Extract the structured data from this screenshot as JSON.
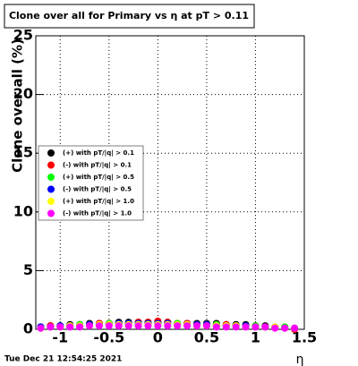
{
  "chart_data": {
    "type": "scatter",
    "title": "Clone  over all for Primary vs  η at pT > 0.11",
    "y_label": "Clone  over all (%)",
    "x_label": "η",
    "footer": "Tue Dec 21 12:54:25 2021",
    "xlim": [
      -1.25,
      1.5
    ],
    "ylim": [
      0,
      25
    ],
    "xticks": [
      -1,
      -0.5,
      0,
      0.5,
      1,
      1.5
    ],
    "yticks": [
      0,
      5,
      10,
      15,
      20,
      25
    ],
    "grid": true,
    "legend": "left",
    "x": [
      -1.2,
      -1.1,
      -1.0,
      -0.9,
      -0.8,
      -0.7,
      -0.6,
      -0.5,
      -0.4,
      -0.3,
      -0.2,
      -0.1,
      0.0,
      0.1,
      0.2,
      0.3,
      0.4,
      0.5,
      0.6,
      0.7,
      0.8,
      0.9,
      1.0,
      1.1,
      1.2,
      1.3,
      1.4
    ],
    "series": [
      {
        "name": "(+) with pT/|q| > 0.1",
        "color": "#000000",
        "values": [
          0.2,
          0.3,
          0.3,
          0.4,
          0.4,
          0.5,
          0.5,
          0.5,
          0.6,
          0.6,
          0.6,
          0.6,
          0.6,
          0.6,
          0.5,
          0.5,
          0.5,
          0.5,
          0.5,
          0.4,
          0.4,
          0.4,
          0.3,
          0.3,
          0.2,
          0.2,
          0.1
        ]
      },
      {
        "name": "(-) with pT/|q| > 0.1",
        "color": "#ff0000",
        "values": [
          0.2,
          0.3,
          0.3,
          0.3,
          0.4,
          0.4,
          0.5,
          0.5,
          0.5,
          0.5,
          0.6,
          0.6,
          0.7,
          0.6,
          0.5,
          0.5,
          0.4,
          0.4,
          0.4,
          0.4,
          0.3,
          0.3,
          0.3,
          0.2,
          0.2,
          0.1,
          0.0
        ]
      },
      {
        "name": "(+) with pT/|q| > 0.5",
        "color": "#00ff00",
        "values": [
          0.2,
          0.2,
          0.3,
          0.3,
          0.4,
          0.4,
          0.4,
          0.5,
          0.5,
          0.5,
          0.5,
          0.5,
          0.5,
          0.5,
          0.5,
          0.4,
          0.4,
          0.4,
          0.4,
          0.3,
          0.3,
          0.3,
          0.3,
          0.2,
          0.2,
          0.2,
          0.1
        ]
      },
      {
        "name": "(-) with pT/|q| > 0.5",
        "color": "#0000ff",
        "values": [
          0.2,
          0.2,
          0.3,
          0.3,
          0.3,
          0.4,
          0.4,
          0.4,
          0.5,
          0.5,
          0.5,
          0.5,
          0.5,
          0.5,
          0.4,
          0.4,
          0.4,
          0.4,
          0.3,
          0.3,
          0.3,
          0.3,
          0.2,
          0.2,
          0.2,
          0.1,
          0.1
        ]
      },
      {
        "name": "(+) with pT/|q| > 1.0",
        "color": "#ffff00",
        "values": [
          0.1,
          0.2,
          0.2,
          0.3,
          0.3,
          0.3,
          0.4,
          0.4,
          0.4,
          0.4,
          0.4,
          0.4,
          0.4,
          0.4,
          0.4,
          0.4,
          0.3,
          0.3,
          0.3,
          0.3,
          0.3,
          0.2,
          0.2,
          0.2,
          0.2,
          0.1,
          0.1
        ]
      },
      {
        "name": "(-) with pT/|q| > 1.0",
        "color": "#ff00ff",
        "values": [
          0.1,
          0.2,
          0.2,
          0.2,
          0.2,
          0.3,
          0.3,
          0.3,
          0.3,
          0.3,
          0.3,
          0.3,
          0.3,
          0.3,
          0.3,
          0.3,
          0.3,
          0.3,
          0.2,
          0.2,
          0.2,
          0.2,
          0.2,
          0.2,
          0.1,
          0.1,
          0.1
        ]
      }
    ]
  }
}
